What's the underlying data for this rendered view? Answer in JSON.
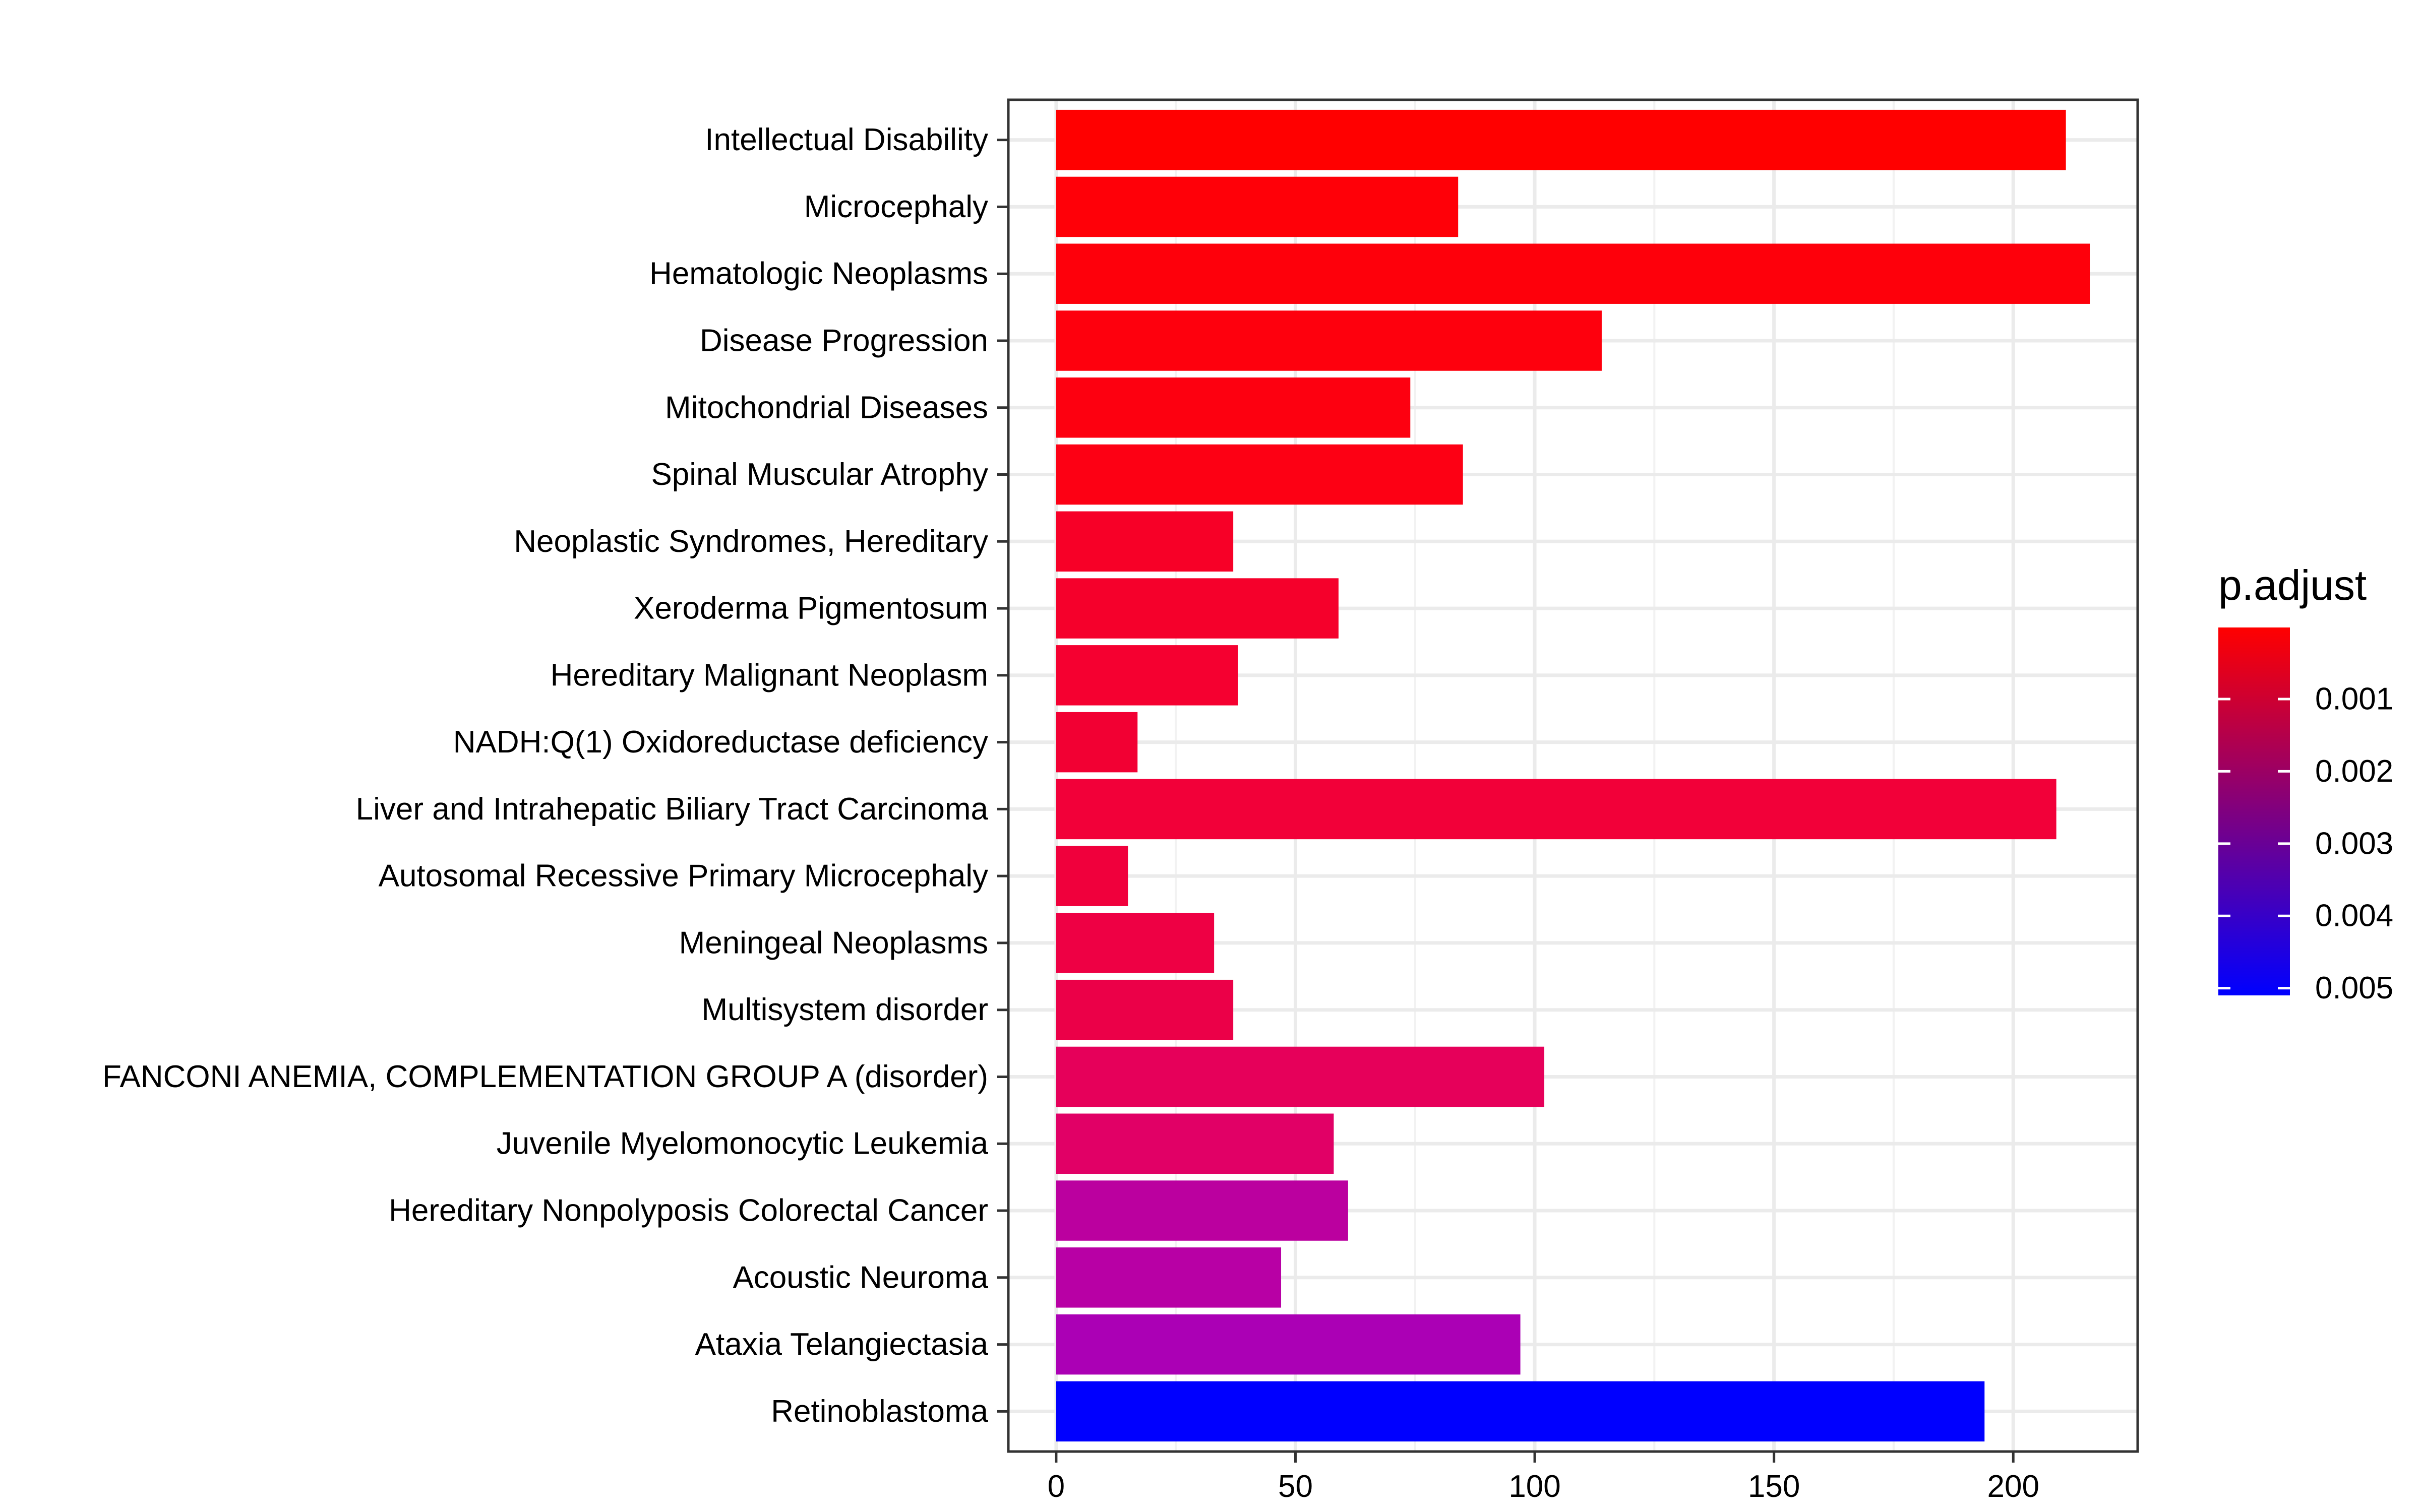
{
  "chart_data": {
    "type": "bar",
    "orientation": "horizontal",
    "categories": [
      "Intellectual Disability",
      "Microcephaly",
      "Hematologic Neoplasms",
      "Disease Progression",
      "Mitochondrial Diseases",
      "Spinal Muscular Atrophy",
      "Neoplastic Syndromes, Hereditary",
      "Xeroderma Pigmentosum",
      "Hereditary Malignant Neoplasm",
      "NADH:Q(1) Oxidoreductase deficiency",
      "Liver and Intrahepatic Biliary Tract Carcinoma",
      "Autosomal Recessive Primary Microcephaly",
      "Meningeal Neoplasms",
      "Multisystem disorder",
      "FANCONI ANEMIA, COMPLEMENTATION GROUP A (disorder)",
      "Juvenile Myelomonocytic Leukemia",
      "Hereditary Nonpolyposis Colorectal Cancer",
      "Acoustic Neuroma",
      "Ataxia Telangiectasia",
      "Retinoblastoma"
    ],
    "values": [
      211,
      84,
      216,
      114,
      74,
      85,
      37,
      59,
      38,
      17,
      209,
      15,
      33,
      37,
      102,
      58,
      61,
      47,
      97,
      194
    ],
    "p_adjust": [
      1e-05,
      0.0001,
      0.0002,
      0.0003,
      0.0004,
      0.0004,
      0.0008,
      0.0009,
      0.001,
      0.0011,
      0.0012,
      0.0013,
      0.0015,
      0.0016,
      0.0019,
      0.0021,
      0.0032,
      0.0035,
      0.0037,
      0.0049
    ],
    "bar_colors": [
      "#FF0000",
      "#FF0008",
      "#FE000B",
      "#FE000D",
      "#FD0010",
      "#FD0014",
      "#F70027",
      "#F5002B",
      "#F50030",
      "#F20033",
      "#F20039",
      "#F0003C",
      "#EE0044",
      "#EB0048",
      "#E6005A",
      "#E10066",
      "#BB009F",
      "#B800A5",
      "#AB00B5",
      "#0000FF"
    ],
    "xlim": [
      -10,
      226
    ],
    "xticks": [
      0,
      50,
      100,
      150,
      200
    ],
    "xlabel": "",
    "ylabel": "",
    "title": "",
    "grid": true,
    "legend": {
      "title": "p.adjust",
      "position": "right",
      "type": "colorbar",
      "labels": [
        "0.001",
        "0.002",
        "0.003",
        "0.004",
        "0.005"
      ],
      "tick_values": [
        0.001,
        0.002,
        0.003,
        0.004,
        0.005
      ],
      "range": [
        1e-05,
        0.0051
      ],
      "low_color": "#FF0000",
      "high_color": "#0000FF"
    }
  }
}
